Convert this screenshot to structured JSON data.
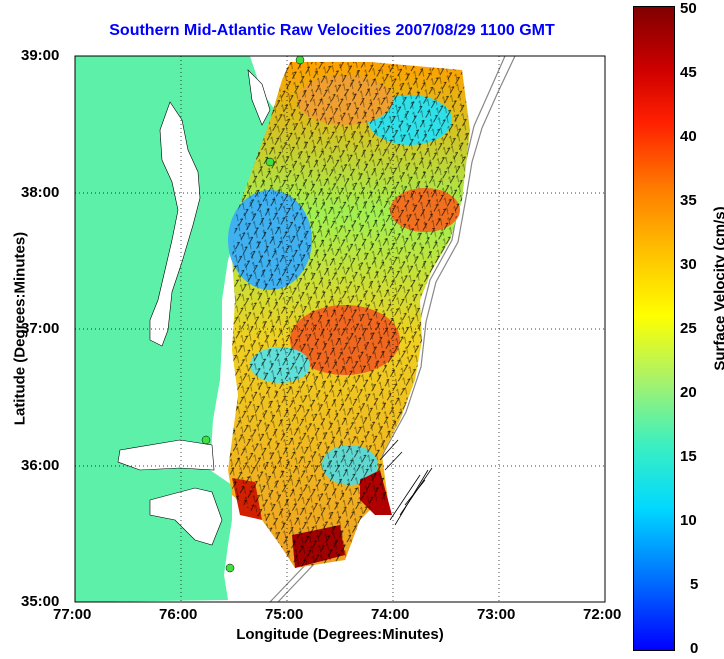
{
  "title": "Southern Mid-Atlantic Raw Velocities 2007/08/29 1100 GMT",
  "map": {
    "xlabel": "Longitude (Degrees:Minutes)",
    "ylabel": "Latitude (Degrees:Minutes)",
    "x_ticks": [
      "77:00",
      "76:00",
      "75:00",
      "74:00",
      "73:00",
      "72:00"
    ],
    "y_ticks": [
      "39:00",
      "38:00",
      "37:00",
      "36:00",
      "35:00"
    ],
    "land_color": "#5cf0a8",
    "grid": "dotted"
  },
  "colorbar": {
    "label": "Surface Velocity (cm/s)",
    "ticks": [
      "50",
      "45",
      "40",
      "35",
      "30",
      "25",
      "20",
      "15",
      "10",
      "5",
      "0"
    ],
    "range": [
      0,
      50
    ],
    "colormap": "jet"
  },
  "icons": [
    "station-marker-icon"
  ]
}
